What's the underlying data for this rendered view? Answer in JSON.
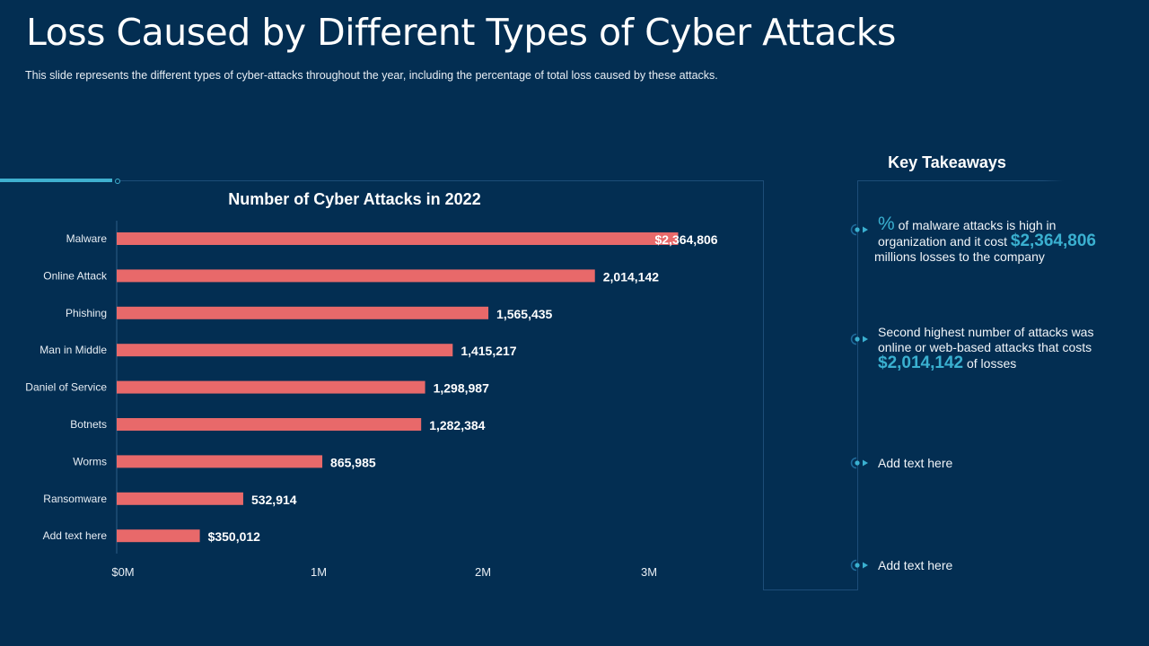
{
  "slide": {
    "title": "Loss Caused by Different Types of Cyber Attacks",
    "subtitle": "This slide represents the different  types of cyber-attacks throughout  the year, including the percentage  of total loss caused by these attacks."
  },
  "colors": {
    "background": "#032e52",
    "bar": "#e8696a",
    "accent": "#3ab0d0"
  },
  "chart_data": {
    "type": "bar",
    "orientation": "horizontal",
    "title": "Number of Cyber Attacks in 2022",
    "categories": [
      "Malware",
      "Online Attack",
      "Phishing",
      "Man in Middle",
      "Daniel of Service",
      "Botnets",
      "Worms",
      "Ransomware",
      "Add text here"
    ],
    "values": [
      2364806,
      2014142,
      1565435,
      1415217,
      1298987,
      1282384,
      865985,
      532914,
      350012
    ],
    "data_labels": [
      "$2,364,806",
      "2,014,142",
      "1,565,435",
      "1,415,217",
      "1,298,987",
      "1,282,384",
      "865,985",
      "532,914",
      "$350,012"
    ],
    "x_ticks": [
      0,
      1000000,
      2000000,
      3000000
    ],
    "x_tick_labels": [
      "$0M",
      "1M",
      "2M",
      "3M"
    ],
    "xlabel": "",
    "ylabel": "",
    "xlim": [
      0,
      3500000
    ],
    "grid": false,
    "legend": "none"
  },
  "key_takeaways": {
    "title": "Key Takeaways",
    "items": [
      {
        "pct": "%",
        "text1": " of malware attacks is high in organization and it cost ",
        "value": "$2,364,806",
        "text2": " millions losses to the company"
      },
      {
        "text1": "Second highest number of attacks was online or web-based attacks that costs ",
        "value": "$2,014,142",
        "text2": " of losses"
      },
      {
        "text1": "Add text here"
      },
      {
        "text1": "Add text here"
      }
    ]
  }
}
